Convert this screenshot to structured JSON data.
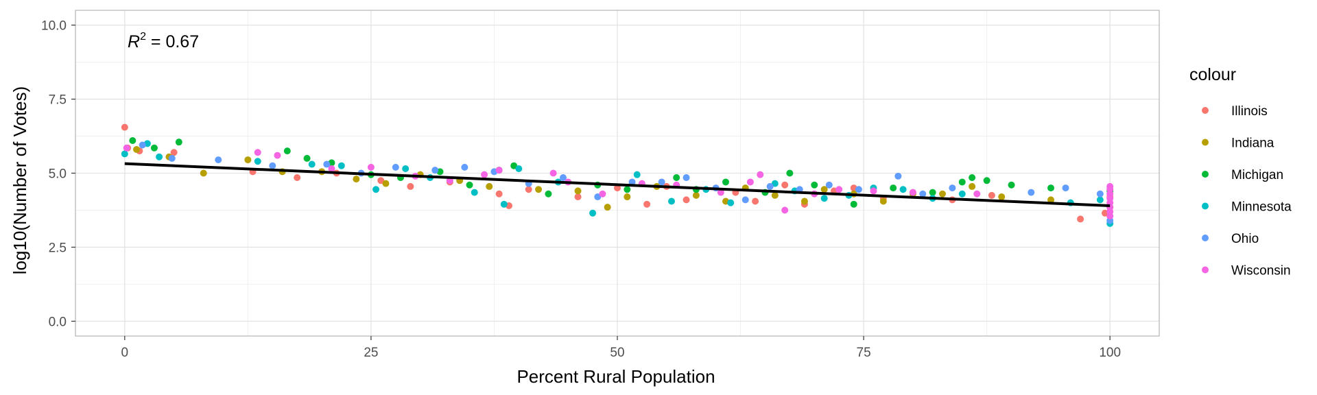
{
  "chart_data": {
    "type": "scatter",
    "xlabel": "Percent Rural Population",
    "ylabel": "log10(Number of Votes)",
    "xlim": [
      -5,
      105
    ],
    "ylim": [
      -0.5,
      10.5
    ],
    "x_ticks": [
      0,
      25,
      50,
      75,
      100
    ],
    "y_ticks": [
      0.0,
      2.5,
      5.0,
      7.5,
      10.0
    ],
    "x_tick_labels": [
      "0",
      "25",
      "50",
      "75",
      "100"
    ],
    "y_tick_labels": [
      "0.0",
      "2.5",
      "5.0",
      "7.5",
      "10.0"
    ],
    "grid": true,
    "legend": {
      "title": "colour",
      "placement": "right"
    },
    "annotation": {
      "italic": "R",
      "sup": "2",
      "rest": " = 0.67"
    },
    "trend_line": {
      "x": [
        0,
        100
      ],
      "y": [
        5.32,
        3.9
      ]
    },
    "series": [
      {
        "name": "Illinois",
        "color": "#F8766D",
        "points": [
          [
            0,
            6.55
          ],
          [
            0.3,
            5.85
          ],
          [
            1.5,
            5.75
          ],
          [
            5,
            5.7
          ],
          [
            13,
            5.05
          ],
          [
            17.5,
            4.85
          ],
          [
            21.5,
            5.0
          ],
          [
            26,
            4.75
          ],
          [
            29,
            4.55
          ],
          [
            33,
            4.7
          ],
          [
            38,
            4.3
          ],
          [
            39,
            3.9
          ],
          [
            41,
            4.45
          ],
          [
            46,
            4.2
          ],
          [
            50,
            4.5
          ],
          [
            53,
            3.95
          ],
          [
            55,
            4.55
          ],
          [
            57,
            4.1
          ],
          [
            62,
            4.35
          ],
          [
            64,
            4.05
          ],
          [
            67,
            4.6
          ],
          [
            69,
            3.95
          ],
          [
            72,
            4.4
          ],
          [
            74,
            4.5
          ],
          [
            77,
            4.15
          ],
          [
            80,
            4.35
          ],
          [
            84,
            4.1
          ],
          [
            88,
            4.25
          ],
          [
            97,
            3.45
          ],
          [
            99.5,
            3.65
          ],
          [
            100,
            4.2
          ]
        ]
      },
      {
        "name": "Indiana",
        "color": "#B79F00",
        "points": [
          [
            1.2,
            5.8
          ],
          [
            4.5,
            5.55
          ],
          [
            8,
            5.0
          ],
          [
            12.5,
            5.45
          ],
          [
            16,
            5.05
          ],
          [
            20,
            5.05
          ],
          [
            23.5,
            4.8
          ],
          [
            26.5,
            4.65
          ],
          [
            30,
            4.95
          ],
          [
            34,
            4.75
          ],
          [
            37,
            4.55
          ],
          [
            42,
            4.45
          ],
          [
            46,
            4.4
          ],
          [
            49,
            3.85
          ],
          [
            51,
            4.2
          ],
          [
            54,
            4.55
          ],
          [
            58,
            4.25
          ],
          [
            61,
            4.05
          ],
          [
            63,
            4.5
          ],
          [
            66,
            4.25
          ],
          [
            69,
            4.05
          ],
          [
            71,
            4.45
          ],
          [
            74,
            4.3
          ],
          [
            77,
            4.05
          ],
          [
            80,
            4.3
          ],
          [
            83,
            4.3
          ],
          [
            86,
            4.55
          ],
          [
            89,
            4.2
          ],
          [
            94,
            4.1
          ],
          [
            100,
            3.85
          ]
        ]
      },
      {
        "name": "Michigan",
        "color": "#00BA38",
        "points": [
          [
            0.8,
            6.1
          ],
          [
            3,
            5.85
          ],
          [
            5.5,
            6.05
          ],
          [
            16.5,
            5.75
          ],
          [
            18.5,
            5.5
          ],
          [
            21,
            5.35
          ],
          [
            25,
            4.95
          ],
          [
            28,
            4.85
          ],
          [
            32,
            5.05
          ],
          [
            35,
            4.6
          ],
          [
            38,
            5.1
          ],
          [
            39.5,
            5.25
          ],
          [
            43,
            4.3
          ],
          [
            48,
            4.6
          ],
          [
            51,
            4.45
          ],
          [
            56,
            4.85
          ],
          [
            58,
            4.45
          ],
          [
            61,
            4.7
          ],
          [
            65,
            4.35
          ],
          [
            67.5,
            5.0
          ],
          [
            70,
            4.6
          ],
          [
            74,
            3.95
          ],
          [
            78,
            4.5
          ],
          [
            82,
            4.35
          ],
          [
            85,
            4.7
          ],
          [
            86,
            4.85
          ],
          [
            87.5,
            4.75
          ],
          [
            90,
            4.6
          ],
          [
            94,
            4.5
          ],
          [
            100,
            4.4
          ]
        ]
      },
      {
        "name": "Minnesota",
        "color": "#00BFC4",
        "points": [
          [
            0,
            5.65
          ],
          [
            2.3,
            6.0
          ],
          [
            3.5,
            5.55
          ],
          [
            13.5,
            5.4
          ],
          [
            19,
            5.3
          ],
          [
            22,
            5.25
          ],
          [
            25.5,
            4.45
          ],
          [
            28.5,
            5.15
          ],
          [
            31,
            4.85
          ],
          [
            35.5,
            4.35
          ],
          [
            38.5,
            3.95
          ],
          [
            40,
            5.15
          ],
          [
            44,
            4.7
          ],
          [
            47.5,
            3.65
          ],
          [
            52,
            4.95
          ],
          [
            55.5,
            4.05
          ],
          [
            59,
            4.45
          ],
          [
            61.5,
            4.0
          ],
          [
            66,
            4.65
          ],
          [
            68,
            4.4
          ],
          [
            71,
            4.15
          ],
          [
            73.5,
            4.25
          ],
          [
            76,
            4.5
          ],
          [
            79,
            4.45
          ],
          [
            82,
            4.15
          ],
          [
            85,
            4.3
          ],
          [
            96,
            4.0
          ],
          [
            99,
            4.1
          ],
          [
            100,
            3.3
          ]
        ]
      },
      {
        "name": "Ohio",
        "color": "#619CFF",
        "points": [
          [
            1.8,
            5.95
          ],
          [
            4.8,
            5.5
          ],
          [
            9.5,
            5.45
          ],
          [
            15,
            5.25
          ],
          [
            20.5,
            5.3
          ],
          [
            24,
            5.0
          ],
          [
            27.5,
            5.2
          ],
          [
            31.5,
            5.1
          ],
          [
            34.5,
            5.2
          ],
          [
            37.5,
            5.05
          ],
          [
            41,
            4.65
          ],
          [
            44.5,
            4.85
          ],
          [
            48,
            4.2
          ],
          [
            51.5,
            4.7
          ],
          [
            54.5,
            4.7
          ],
          [
            57,
            4.85
          ],
          [
            60,
            4.5
          ],
          [
            63,
            4.1
          ],
          [
            65.5,
            4.55
          ],
          [
            68.5,
            4.45
          ],
          [
            71.5,
            4.6
          ],
          [
            74.5,
            4.45
          ],
          [
            78.5,
            4.9
          ],
          [
            81,
            4.3
          ],
          [
            84,
            4.5
          ],
          [
            92,
            4.35
          ],
          [
            95.5,
            4.5
          ],
          [
            99,
            4.3
          ],
          [
            100,
            3.4
          ]
        ]
      },
      {
        "name": "Wisconsin",
        "color": "#F564E3",
        "points": [
          [
            0.2,
            5.85
          ],
          [
            13.5,
            5.7
          ],
          [
            15.5,
            5.6
          ],
          [
            21,
            5.15
          ],
          [
            25,
            5.2
          ],
          [
            29.5,
            4.9
          ],
          [
            33,
            4.75
          ],
          [
            36.5,
            4.95
          ],
          [
            38,
            5.1
          ],
          [
            43.5,
            5.0
          ],
          [
            45,
            4.7
          ],
          [
            48.5,
            4.3
          ],
          [
            52.5,
            4.65
          ],
          [
            56,
            4.6
          ],
          [
            60.5,
            4.35
          ],
          [
            63.5,
            4.7
          ],
          [
            64.5,
            4.95
          ],
          [
            67,
            3.75
          ],
          [
            70,
            4.3
          ],
          [
            72.5,
            4.45
          ],
          [
            76,
            4.4
          ],
          [
            80,
            4.35
          ],
          [
            86.5,
            4.3
          ],
          [
            100,
            4.55
          ],
          [
            100,
            4.45
          ],
          [
            100,
            4.3
          ],
          [
            100,
            4.15
          ],
          [
            100,
            4.0
          ],
          [
            100,
            3.85
          ],
          [
            100,
            3.7
          ],
          [
            100,
            3.55
          ]
        ]
      }
    ]
  }
}
